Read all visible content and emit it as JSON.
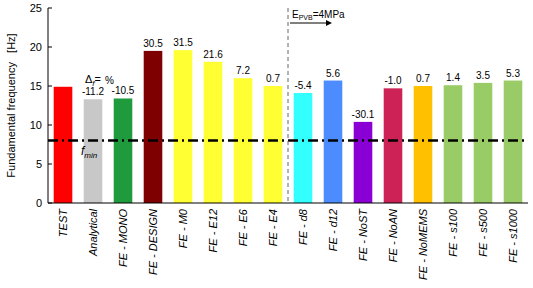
{
  "chart_data": {
    "type": "bar",
    "y_label": "Fundamental frequency   [Hz]",
    "categories": [
      "TEST",
      "Analytical",
      "FE - MONO",
      "FE - DESIGN",
      "FE - M0",
      "FE - E12",
      "FE - E6",
      "FE - E4",
      "FE - d8",
      "FE - d12",
      "FE - NoST",
      "FE - NoAN",
      "FE - NoMEMS",
      "FE - s100",
      "FE - s500",
      "FE - s1000"
    ],
    "values": [
      14.9,
      13.3,
      13.4,
      19.5,
      19.6,
      18.1,
      16.0,
      15.0,
      14.1,
      15.7,
      10.4,
      14.7,
      15.0,
      15.1,
      15.4,
      15.7
    ],
    "colors": [
      "#ff0000",
      "#c8c8c8",
      "#1f9a3c",
      "#7f0000",
      "#ffff33",
      "#ffff33",
      "#ffff33",
      "#ffff33",
      "#33ffff",
      "#4d8cff",
      "#8a00d4",
      "#cc2255",
      "#ffc000",
      "#99cc66",
      "#99cc66",
      "#99cc66"
    ],
    "delta_values": [
      null,
      -11.2,
      -10.5,
      30.5,
      31.5,
      21.6,
      7.2,
      0.7,
      -5.4,
      5.6,
      -30.1,
      -1.0,
      0.7,
      1.4,
      3.5,
      5.3
    ],
    "delta_value_labels": [
      null,
      "-11.2",
      "-10.5",
      "30.5",
      "31.5",
      "21.6",
      "7.2",
      "0.7",
      "-5.4",
      "5.6",
      "-30.1",
      "-1.0",
      "0.7",
      "1.4",
      "3.5",
      "5.3"
    ],
    "delta_annotation": {
      "symbol": "Δ",
      "subscript": "f",
      "equals": "=",
      "unit": "%"
    },
    "reference_line": {
      "value": 8,
      "label": "f",
      "subscript": "min",
      "line_style": "dashdot"
    },
    "region_annotation": {
      "start_category": "FE - d8",
      "label": "E",
      "subscript": "PVB",
      "text": "=4MPa"
    },
    "ylim": [
      0,
      25
    ],
    "yticks": [
      0,
      5,
      10,
      15,
      20,
      25
    ],
    "grid": false
  }
}
